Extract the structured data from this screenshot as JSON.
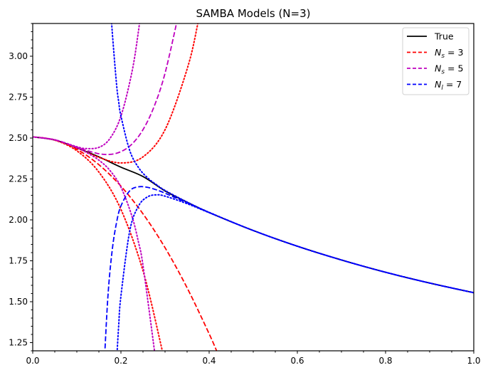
{
  "chart_data": {
    "type": "line",
    "title": "SAMBA Models (N=3)",
    "xlabel": "",
    "ylabel": "",
    "xlim": [
      0.0,
      1.0
    ],
    "ylim": [
      1.2,
      3.2
    ],
    "x_ticks": [
      "0.0",
      "0.2",
      "0.4",
      "0.6",
      "0.8",
      "1.0"
    ],
    "y_ticks": [
      "1.25",
      "1.50",
      "1.75",
      "2.00",
      "2.25",
      "2.50",
      "2.75",
      "3.00"
    ],
    "x_minor_step": 0.05,
    "y_minor_step": 0.05,
    "grid": false,
    "legend_placement": "top-right",
    "legend": [
      {
        "symbol": "N",
        "sub": "",
        "text": "True",
        "color": "#000000",
        "style": "solid"
      },
      {
        "symbol": "N",
        "sub": "s",
        "text": " = 3",
        "color": "#ff0000",
        "style": "dashed"
      },
      {
        "symbol": "N",
        "sub": "s",
        "text": " = 5",
        "color": "#bf00bf",
        "style": "dashed"
      },
      {
        "symbol": "N",
        "sub": "l",
        "text": " = 7",
        "color": "#0000ff",
        "style": "dashed"
      }
    ],
    "series": [
      {
        "name": "True",
        "color": "#000000",
        "style": "solid",
        "x": [
          0,
          0.05,
          0.1,
          0.15,
          0.2,
          0.25,
          0.3,
          0.35,
          0.4,
          0.5,
          0.6,
          0.7,
          0.8,
          0.9,
          1.0
        ],
        "y": [
          2.507,
          2.488,
          2.44,
          2.385,
          2.322,
          2.265,
          2.177,
          2.108,
          2.045,
          1.935,
          1.839,
          1.755,
          1.68,
          1.614,
          1.555
        ]
      },
      {
        "name": "N_s = 3",
        "color": "#ff0000",
        "style": "dashed",
        "x": [
          0,
          0.05,
          0.1,
          0.15,
          0.2,
          0.25,
          0.3,
          0.35,
          0.4,
          0.42
        ],
        "y": [
          2.507,
          2.488,
          2.431,
          2.337,
          2.206,
          2.037,
          1.83,
          1.585,
          1.304,
          1.18
        ]
      },
      {
        "color": "#ff0000",
        "style": "dotted",
        "x": [
          0,
          0.05,
          0.1,
          0.15,
          0.2,
          0.25,
          0.3,
          0.35,
          0.375,
          0.4
        ],
        "y": [
          2.507,
          2.489,
          2.44,
          2.382,
          2.348,
          2.385,
          2.551,
          2.921,
          3.209,
          3.582
        ]
      },
      {
        "color": "#ff0000",
        "style": "dotted",
        "x": [
          0,
          0.05,
          0.1,
          0.15,
          0.2,
          0.25,
          0.29,
          0.3,
          0.31
        ],
        "y": [
          2.507,
          2.487,
          2.422,
          2.292,
          2.064,
          1.689,
          1.245,
          1.109,
          0.96
        ]
      },
      {
        "name": "N_s = 5",
        "color": "#bf00bf",
        "style": "dashed",
        "x": [
          0,
          0.05,
          0.1,
          0.12,
          0.15,
          0.175,
          0.2,
          0.225,
          0.25,
          0.275,
          0.3,
          0.33
        ],
        "y": [
          2.507,
          2.489,
          2.444,
          2.426,
          2.404,
          2.4,
          2.417,
          2.463,
          2.551,
          2.691,
          2.896,
          3.249
        ]
      },
      {
        "color": "#bf00bf",
        "style": "dotted",
        "x": [
          0,
          0.05,
          0.1,
          0.12,
          0.15,
          0.175,
          0.2,
          0.225,
          0.24,
          0.25
        ],
        "y": [
          2.507,
          2.489,
          2.447,
          2.436,
          2.443,
          2.497,
          2.634,
          2.904,
          3.159,
          3.38
        ]
      },
      {
        "color": "#bf00bf",
        "style": "dotted",
        "x": [
          0,
          0.05,
          0.1,
          0.12,
          0.15,
          0.175,
          0.2,
          0.225,
          0.24,
          0.25,
          0.275,
          0.285
        ],
        "y": [
          2.507,
          2.489,
          2.441,
          2.415,
          2.365,
          2.302,
          2.2,
          2.022,
          1.861,
          1.722,
          1.221,
          1.0
        ]
      },
      {
        "name": "N_l = 7",
        "color": "#0000ff",
        "style": "dashed",
        "x": [
          0.16,
          0.17,
          0.18,
          0.19,
          0.2,
          0.22,
          0.24,
          0.26,
          0.28,
          0.3,
          0.35,
          0.4,
          0.5,
          0.6,
          0.7,
          0.8,
          0.9,
          1.0
        ],
        "y": [
          0.998,
          1.513,
          1.81,
          1.983,
          2.085,
          2.178,
          2.202,
          2.199,
          2.184,
          2.163,
          2.104,
          2.045,
          1.935,
          1.839,
          1.755,
          1.68,
          1.614,
          1.555
        ]
      },
      {
        "color": "#0000ff",
        "style": "dotted",
        "x": [
          0.175,
          0.18,
          0.19,
          0.195,
          0.2,
          0.22,
          0.24,
          0.26,
          0.28,
          0.3,
          0.35,
          0.4,
          0.5,
          0.6,
          0.7,
          0.8,
          0.9,
          1.0
        ],
        "y": [
          3.38,
          3.16,
          2.83,
          2.72,
          2.635,
          2.423,
          2.319,
          2.258,
          2.216,
          2.18,
          2.109,
          2.046,
          1.935,
          1.839,
          1.755,
          1.68,
          1.614,
          1.555
        ]
      },
      {
        "color": "#0000ff",
        "style": "dotted",
        "x": [
          0.19,
          0.195,
          0.2,
          0.22,
          0.24,
          0.26,
          0.28,
          0.3,
          0.35,
          0.4,
          0.5,
          0.6,
          0.7,
          0.8,
          0.9,
          1.0
        ],
        "y": [
          1.13,
          1.36,
          1.535,
          1.933,
          2.085,
          2.14,
          2.153,
          2.145,
          2.099,
          2.044,
          1.935,
          1.839,
          1.755,
          1.68,
          1.614,
          1.555
        ]
      }
    ]
  }
}
